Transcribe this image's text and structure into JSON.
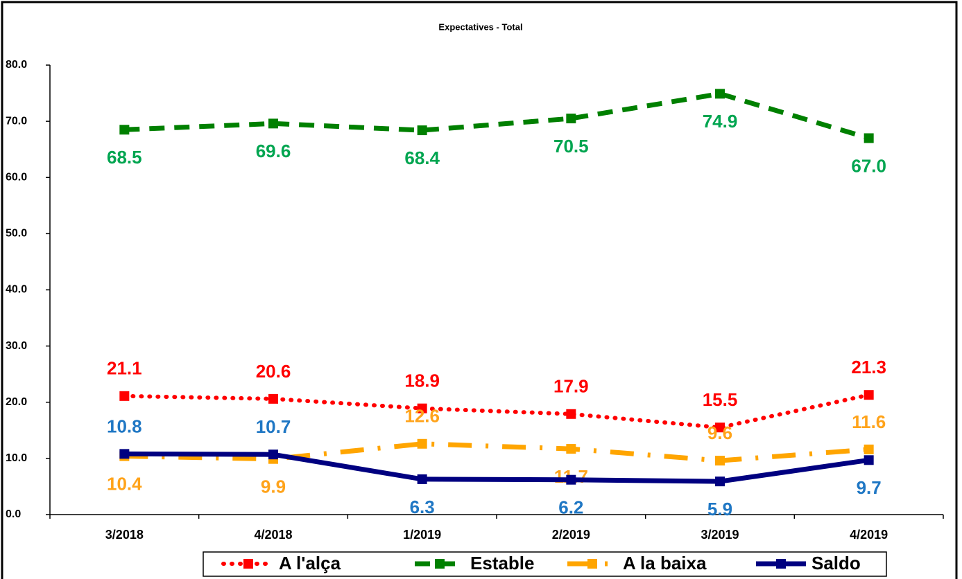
{
  "chart_data": {
    "type": "line",
    "title": "Expectatives - Total",
    "categories": [
      "3/2018",
      "4/2018",
      "1/2019",
      "2/2019",
      "3/2019",
      "4/2019"
    ],
    "ylim": [
      0,
      80
    ],
    "yticks": [
      {
        "value": 0,
        "label": "0.0"
      },
      {
        "value": 10,
        "label": "10.0"
      },
      {
        "value": 20,
        "label": "20.0"
      },
      {
        "value": 30,
        "label": "30.0"
      },
      {
        "value": 40,
        "label": "40.0"
      },
      {
        "value": 50,
        "label": "50.0"
      },
      {
        "value": 60,
        "label": "60.0"
      },
      {
        "value": 70,
        "label": "70.0"
      },
      {
        "value": 80,
        "label": "80.0"
      }
    ],
    "grid": false,
    "legend": "bottom",
    "series": [
      {
        "name": "A l'alça",
        "color": "#ff0000",
        "label_color": "#ff0000",
        "values": [
          21.1,
          20.6,
          18.9,
          17.9,
          15.5,
          21.3
        ],
        "value_labels": [
          "21.1",
          "20.6",
          "18.9",
          "17.9",
          "15.5",
          "21.3"
        ]
      },
      {
        "name": "Estable",
        "color": "#008000",
        "label_color": "#00a550",
        "values": [
          68.5,
          69.6,
          68.4,
          70.5,
          74.9,
          67.0
        ],
        "value_labels": [
          "68.5",
          "69.6",
          "68.4",
          "70.5",
          "74.9",
          "67.0"
        ]
      },
      {
        "name": "A la baixa",
        "color": "#ffa500",
        "label_color": "#ffa31a",
        "values": [
          10.4,
          9.9,
          12.6,
          11.7,
          9.6,
          11.6
        ],
        "value_labels": [
          "10.4",
          "9.9",
          "12.6",
          "11.7",
          "9.6",
          "11.6"
        ]
      },
      {
        "name": "Saldo",
        "color": "#000080",
        "label_color": "#1f77c4",
        "values": [
          10.8,
          10.7,
          6.3,
          6.2,
          5.9,
          9.7
        ],
        "value_labels": [
          "10.8",
          "10.7",
          "6.3",
          "6.2",
          "5.9",
          "9.7"
        ]
      }
    ]
  }
}
